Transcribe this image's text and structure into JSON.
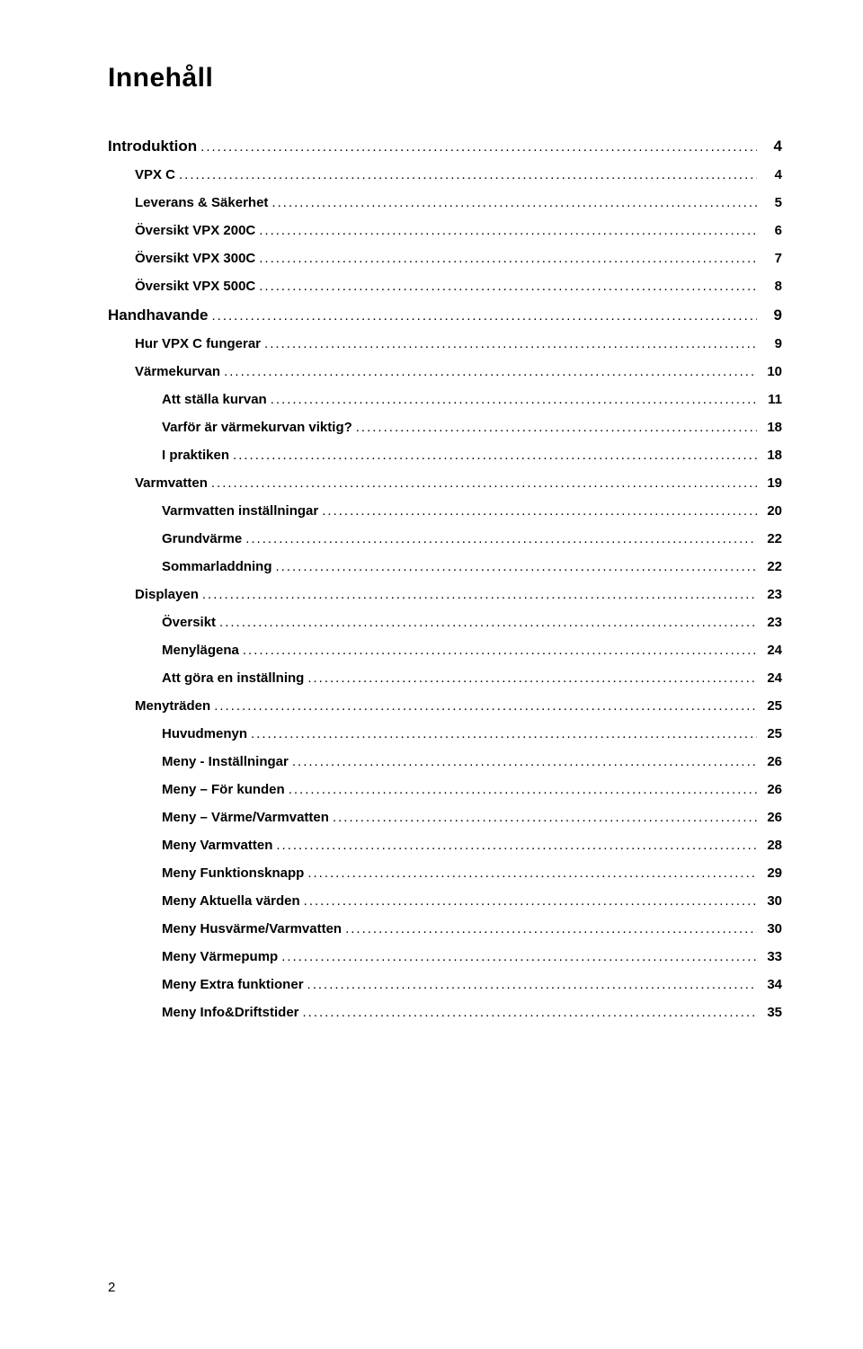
{
  "title": "Innehåll",
  "pageNumber": "2",
  "colors": {
    "background": "#ffffff",
    "text": "#000000"
  },
  "typography": {
    "title_fontsize_pt": 22,
    "lvl0_fontsize_pt": 13,
    "lvl1_fontsize_pt": 11,
    "lvl2_fontsize_pt": 11,
    "font_family": "Arial"
  },
  "toc": [
    {
      "label": "Introduktion",
      "page": "4",
      "level": 0
    },
    {
      "label": "VPX C",
      "page": "4",
      "level": 1
    },
    {
      "label": "Leverans & Säkerhet",
      "page": "5",
      "level": 1
    },
    {
      "label": "Översikt VPX 200C",
      "page": "6",
      "level": 1
    },
    {
      "label": "Översikt VPX 300C",
      "page": "7",
      "level": 1
    },
    {
      "label": "Översikt VPX 500C",
      "page": "8",
      "level": 1
    },
    {
      "label": "Handhavande",
      "page": "9",
      "level": 0
    },
    {
      "label": "Hur VPX C fungerar",
      "page": "9",
      "level": 1
    },
    {
      "label": "Värmekurvan",
      "page": "10",
      "level": 1
    },
    {
      "label": "Att ställa kurvan",
      "page": "11",
      "level": 2
    },
    {
      "label": "Varför är värmekurvan viktig?",
      "page": "18",
      "level": 2
    },
    {
      "label": "I praktiken",
      "page": "18",
      "level": 2
    },
    {
      "label": "Varmvatten",
      "page": "19",
      "level": 1
    },
    {
      "label": "Varmvatten inställningar",
      "page": "20",
      "level": 2
    },
    {
      "label": "Grundvärme",
      "page": "22",
      "level": 2
    },
    {
      "label": "Sommarladdning",
      "page": "22",
      "level": 2
    },
    {
      "label": "Displayen",
      "page": "23",
      "level": 1
    },
    {
      "label": "Översikt",
      "page": "23",
      "level": 2
    },
    {
      "label": "Menylägena",
      "page": "24",
      "level": 2
    },
    {
      "label": "Att göra en inställning",
      "page": "24",
      "level": 2
    },
    {
      "label": "Menyträden",
      "page": "25",
      "level": 1
    },
    {
      "label": "Huvudmenyn",
      "page": "25",
      "level": 2
    },
    {
      "label": "Meny - Inställningar",
      "page": "26",
      "level": 2
    },
    {
      "label": "Meny – För kunden",
      "page": "26",
      "level": 2
    },
    {
      "label": "Meny – Värme/Varmvatten",
      "page": "26",
      "level": 2
    },
    {
      "label": "Meny Varmvatten",
      "page": "28",
      "level": 2
    },
    {
      "label": "Meny Funktionsknapp",
      "page": "29",
      "level": 2
    },
    {
      "label": "Meny Aktuella värden",
      "page": "30",
      "level": 2
    },
    {
      "label": "Meny Husvärme/Varmvatten",
      "page": "30",
      "level": 2
    },
    {
      "label": "Meny Värmepump",
      "page": "33",
      "level": 2
    },
    {
      "label": "Meny Extra funktioner",
      "page": "34",
      "level": 2
    },
    {
      "label": "Meny Info&Driftstider",
      "page": "35",
      "level": 2
    }
  ]
}
